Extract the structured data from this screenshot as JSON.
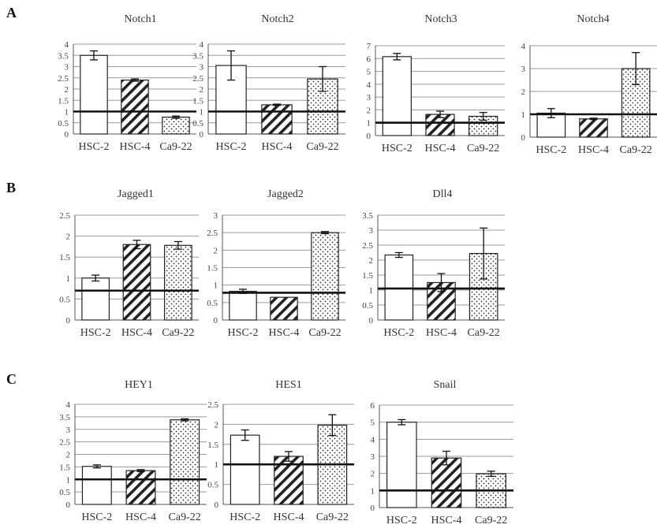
{
  "figure": {
    "panel_labels": [
      "A",
      "B",
      "C"
    ]
  },
  "colors": {
    "bar_stroke": "#222222",
    "bar_fill": "#ffffff",
    "grid": "#9a9a9a",
    "reference_line": "#111111",
    "pattern_ink": "#222222"
  },
  "chart_data": [
    {
      "type": "bar",
      "panel": "A",
      "title": "Notch1",
      "categories": [
        "HSC-2",
        "HSC-4",
        "Ca9-22"
      ],
      "patterns": [
        "empty",
        "diagonal-hatch",
        "dots"
      ],
      "values": [
        3.5,
        2.4,
        0.75
      ],
      "errors": [
        0.2,
        0.05,
        0.05
      ],
      "ylim": [
        0,
        4
      ],
      "yticks": [
        "0",
        "0.5",
        "1",
        "1.5",
        "2",
        "2.5",
        "3",
        "3.5",
        "4"
      ],
      "reference_line": 1,
      "grid": true
    },
    {
      "type": "bar",
      "panel": "A",
      "title": "Notch2",
      "categories": [
        "HSC-2",
        "HSC-4",
        "Ca9-22"
      ],
      "patterns": [
        "empty",
        "diagonal-hatch",
        "dots"
      ],
      "values": [
        3.05,
        1.3,
        2.45
      ],
      "errors": [
        0.65,
        0.03,
        0.55
      ],
      "ylim": [
        0,
        4
      ],
      "yticks": [
        "0",
        "0.5",
        "1",
        "1.5",
        "2",
        "2.5",
        "3",
        "3.5",
        "4"
      ],
      "reference_line": 1,
      "grid": true
    },
    {
      "type": "bar",
      "panel": "A",
      "title": "Notch3",
      "categories": [
        "HSC-2",
        "HSC-4",
        "Ca9-22"
      ],
      "patterns": [
        "empty",
        "diagonal-hatch",
        "dots"
      ],
      "values": [
        6.15,
        1.65,
        1.5
      ],
      "errors": [
        0.25,
        0.25,
        0.3
      ],
      "ylim": [
        0,
        7
      ],
      "yticks": [
        "0",
        "1",
        "2",
        "3",
        "4",
        "5",
        "6",
        "7"
      ],
      "reference_line": 1,
      "grid": true
    },
    {
      "type": "bar",
      "panel": "A",
      "title": "Notch4",
      "categories": [
        "HSC-2",
        "HSC-4",
        "Ca9-22"
      ],
      "patterns": [
        "empty",
        "diagonal-hatch",
        "dots"
      ],
      "values": [
        1.05,
        0.8,
        3.0
      ],
      "errors": [
        0.2,
        0.03,
        0.7
      ],
      "ylim": [
        0,
        4
      ],
      "yticks": [
        "0",
        "1",
        "2",
        "3",
        "4"
      ],
      "reference_line": 1,
      "grid": true
    },
    {
      "type": "bar",
      "panel": "B",
      "title": "Jagged1",
      "categories": [
        "HSC-2",
        "HSC-4",
        "Ca9-22"
      ],
      "patterns": [
        "empty",
        "diagonal-hatch",
        "dots"
      ],
      "values": [
        1.0,
        1.8,
        1.78
      ],
      "errors": [
        0.07,
        0.1,
        0.09
      ],
      "ylim": [
        0,
        2.5
      ],
      "yticks": [
        "0",
        "0.5",
        "1",
        "1.5",
        "2",
        "2.5"
      ],
      "reference_line": 0.7,
      "grid": true
    },
    {
      "type": "bar",
      "panel": "B",
      "title": "Jagged2",
      "categories": [
        "HSC-2",
        "HSC-4",
        "Ca9-22"
      ],
      "patterns": [
        "empty",
        "diagonal-hatch",
        "dots"
      ],
      "values": [
        0.82,
        0.65,
        2.5
      ],
      "errors": [
        0.06,
        0.0,
        0.03
      ],
      "ylim": [
        0,
        3
      ],
      "yticks": [
        "0",
        "0.5",
        "1",
        "1.5",
        "2",
        "2.5",
        "3"
      ],
      "reference_line": 0.78,
      "grid": true
    },
    {
      "type": "bar",
      "panel": "B",
      "title": "Dll4",
      "categories": [
        "HSC-2",
        "HSC-4",
        "Ca9-22"
      ],
      "patterns": [
        "empty",
        "diagonal-hatch",
        "dots"
      ],
      "values": [
        2.17,
        1.25,
        2.22
      ],
      "errors": [
        0.08,
        0.3,
        0.85
      ],
      "ylim": [
        0,
        3.5
      ],
      "yticks": [
        "0",
        "0.5",
        "1",
        "1.5",
        "2",
        "2.5",
        "3",
        "3.5"
      ],
      "reference_line": 1.05,
      "grid": true
    },
    {
      "type": "bar",
      "panel": "C",
      "title": "HEY1",
      "categories": [
        "HSC-2",
        "HSC-4",
        "Ca9-22"
      ],
      "patterns": [
        "empty",
        "diagonal-hatch",
        "dots"
      ],
      "values": [
        1.52,
        1.35,
        3.38
      ],
      "errors": [
        0.06,
        0.04,
        0.04
      ],
      "ylim": [
        0,
        4
      ],
      "yticks": [
        "0",
        "0.5",
        "1",
        "1.5",
        "2",
        "2.5",
        "3",
        "3.5",
        "4"
      ],
      "reference_line": 1.0,
      "grid": true
    },
    {
      "type": "bar",
      "panel": "C",
      "title": "HES1",
      "categories": [
        "HSC-2",
        "HSC-4",
        "Ca9-22"
      ],
      "patterns": [
        "empty",
        "diagonal-hatch",
        "dots"
      ],
      "values": [
        1.73,
        1.2,
        1.98
      ],
      "errors": [
        0.13,
        0.12,
        0.26
      ],
      "ylim": [
        0,
        2.5
      ],
      "yticks": [
        "0",
        "0.5",
        "1",
        "1.5",
        "2",
        "2.5"
      ],
      "reference_line": 1.0,
      "grid": true
    },
    {
      "type": "bar",
      "panel": "C",
      "title": "Snail",
      "categories": [
        "HSC-2",
        "HSC-4",
        "Ca9-22"
      ],
      "patterns": [
        "empty",
        "diagonal-hatch",
        "dots"
      ],
      "values": [
        5.0,
        2.9,
        1.98
      ],
      "errors": [
        0.15,
        0.4,
        0.15
      ],
      "ylim": [
        0,
        6
      ],
      "yticks": [
        "0",
        "1",
        "2",
        "3",
        "4",
        "5",
        "6"
      ],
      "reference_line": 1.0,
      "grid": true
    }
  ]
}
